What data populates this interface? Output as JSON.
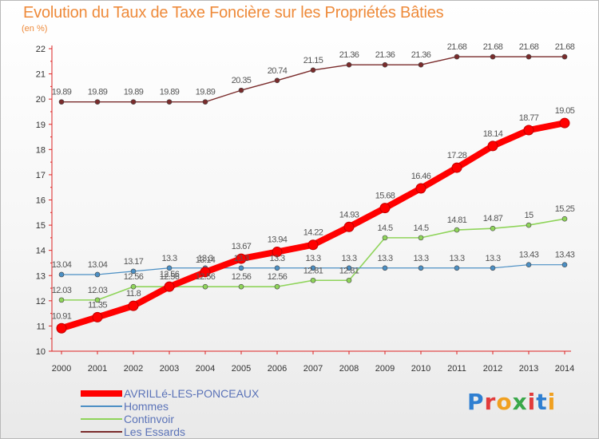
{
  "chart_data": {
    "type": "line",
    "title": "Evolution du Taux de Taxe Foncière sur les Propriétés Bâties",
    "subtitle": "(en %)",
    "xlabel": "",
    "ylabel": "",
    "x": [
      "2000",
      "2001",
      "2002",
      "2003",
      "2004",
      "2005",
      "2006",
      "2007",
      "2008",
      "2009",
      "2010",
      "2011",
      "2012",
      "2013",
      "2014"
    ],
    "ylim": [
      10,
      22
    ],
    "yticks": [
      "10",
      "11",
      "12",
      "13",
      "14",
      "15",
      "16",
      "17",
      "18",
      "19",
      "20",
      "21",
      "22"
    ],
    "series": [
      {
        "name": "AVRILLé-LES-PONCEAUX",
        "color": "#ff0000",
        "values": [
          10.91,
          11.35,
          11.8,
          12.56,
          13.14,
          13.67,
          13.94,
          14.22,
          14.93,
          15.68,
          16.46,
          17.28,
          18.14,
          18.77,
          19.05
        ],
        "labels": [
          "10.91",
          "11.35",
          "11.8",
          "12.56",
          "13.14",
          "13.67",
          "13.94",
          "14.22",
          "14.93",
          "15.68",
          "16.46",
          "17.28",
          "18.14",
          "18.77",
          "19.05"
        ]
      },
      {
        "name": "Hommes",
        "color": "#4b8fc4",
        "values": [
          13.04,
          13.04,
          13.17,
          13.3,
          13.3,
          13.3,
          13.3,
          13.3,
          13.3,
          13.3,
          13.3,
          13.3,
          13.3,
          13.43,
          13.43
        ],
        "labels": [
          "13.04",
          "13.04",
          "13.17",
          "13.3",
          "13.3",
          "13.3",
          "13.3",
          "13.3",
          "13.3",
          "13.3",
          "13.3",
          "13.3",
          "13.3",
          "13.43",
          "13.43"
        ]
      },
      {
        "name": "Continvoir",
        "color": "#8fd45a",
        "values": [
          12.03,
          12.03,
          12.56,
          12.56,
          12.56,
          12.56,
          12.56,
          12.81,
          12.81,
          14.5,
          14.5,
          14.81,
          14.87,
          15,
          15.25
        ],
        "labels": [
          "12.03",
          "12.03",
          "12.56",
          "12.56",
          "12.56",
          "12.56",
          "12.56",
          "12.81",
          "12.81",
          "14.5",
          "14.5",
          "14.81",
          "14.87",
          "15",
          "15.25"
        ]
      },
      {
        "name": "Les Essards",
        "color": "#7a2b2b",
        "values": [
          19.89,
          19.89,
          19.89,
          19.89,
          19.89,
          20.35,
          20.74,
          21.15,
          21.36,
          21.36,
          21.36,
          21.68,
          21.68,
          21.68,
          21.68
        ],
        "labels": [
          "19.89",
          "19.89",
          "19.89",
          "19.89",
          "19.89",
          "20.35",
          "20.74",
          "21.15",
          "21.36",
          "21.36",
          "21.36",
          "21.68",
          "21.68",
          "21.68",
          "21.68"
        ]
      }
    ],
    "legend_position": "bottom-left"
  },
  "logo": {
    "letters": [
      "P",
      "r",
      "o",
      "x",
      "i",
      "t",
      "i"
    ],
    "colors": [
      "#2f7fd1",
      "#e23b3b",
      "#f0a020",
      "#3aa84a",
      "#e23b3b",
      "#2f7fd1",
      "#f0a020"
    ]
  }
}
